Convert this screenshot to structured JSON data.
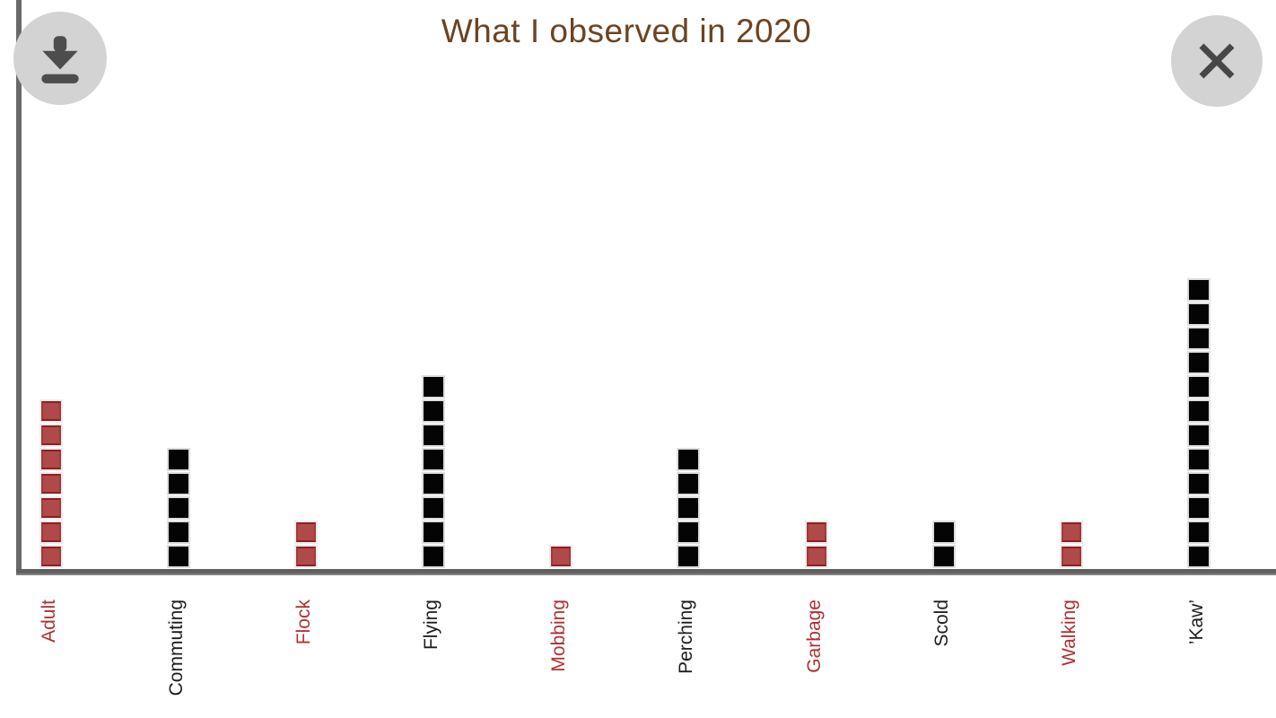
{
  "page": {
    "background": "#ffffff"
  },
  "buttons": {
    "download": {
      "icon": "download-icon"
    },
    "close": {
      "icon": "close-icon"
    }
  },
  "chart_data": {
    "type": "bar",
    "variant": "pictograph of stacked unit squares (1 square = 1 count)",
    "title": "What I observed in 2020",
    "title_color": "#6b4423",
    "categories": [
      "Adult",
      "Commuting",
      "Flock",
      "Flying",
      "Mobbing",
      "Perching",
      "Garbage",
      "Scold",
      "Walking",
      "’Kaw’"
    ],
    "values": [
      7,
      5,
      2,
      8,
      1,
      5,
      2,
      2,
      2,
      12
    ],
    "bar_colors": [
      "#b04a4a",
      "#000000",
      "#b04a4a",
      "#000000",
      "#b04a4a",
      "#000000",
      "#b04a4a",
      "#000000",
      "#b04a4a",
      "#000000"
    ],
    "label_colors": [
      "#b03030",
      "#1c1c1c",
      "#b03030",
      "#1c1c1c",
      "#b03030",
      "#1c1c1c",
      "#b03030",
      "#1c1c1c",
      "#b03030",
      "#1c1c1c"
    ],
    "colors": {
      "red_square_fill": "#b04a4a",
      "red_square_edge": "#8e1f1f",
      "black_square_fill": "#000000",
      "square_frame": "#dedede",
      "axis": "#696969",
      "label_red": "#b03030",
      "label_black": "#1c1c1c"
    },
    "xlabel": "",
    "ylabel": "",
    "ylim": [
      0,
      12
    ],
    "axes": {
      "x_axis_visible": true,
      "y_axis_visible": true,
      "numeric_tick_labels": false,
      "category_labels_rotated_90deg": true,
      "gridlines": false
    }
  }
}
